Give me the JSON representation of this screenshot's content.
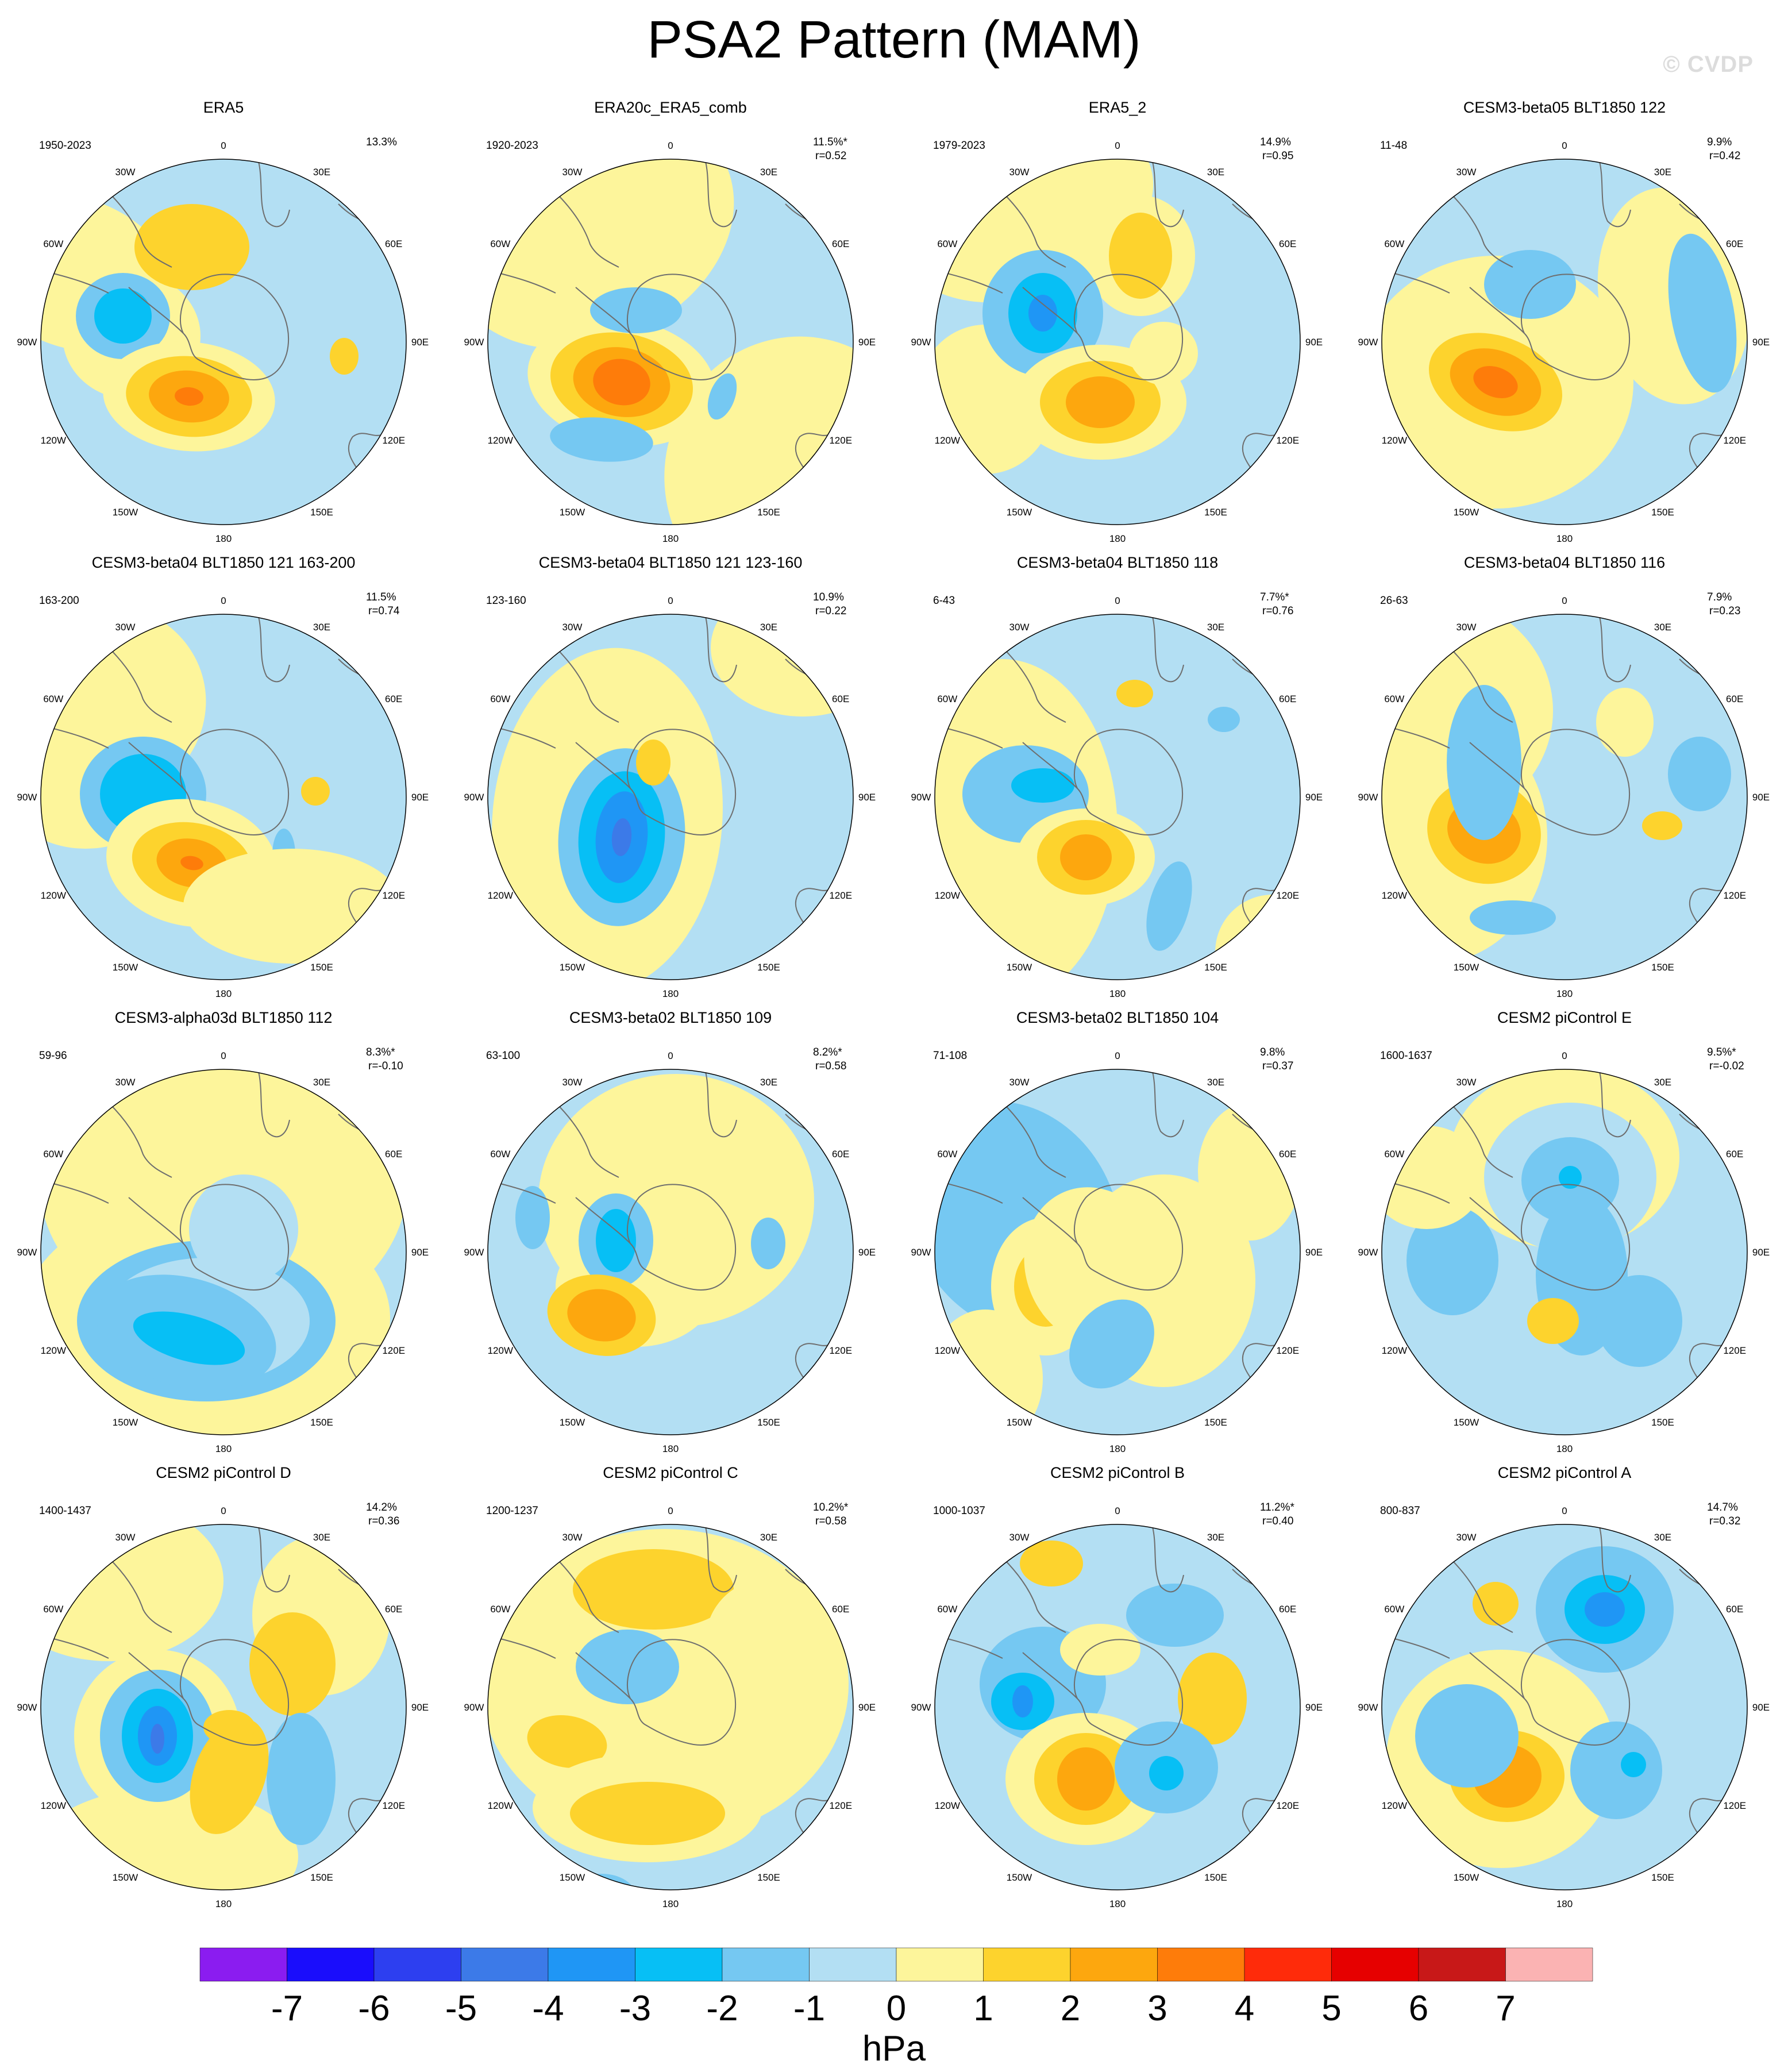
{
  "title": "PSA2 Pattern (MAM)",
  "watermark": "© CVDP",
  "units": "hPa",
  "colors": {
    "ocean_neg1": "#b3dff3",
    "land_pos1": "#fdf59b",
    "levels": [
      "#8b1cf0",
      "#1a0dfc",
      "#2d3ff0",
      "#3c7ae8",
      "#1f96f5",
      "#07bff5",
      "#75c8f2",
      "#b3dff3",
      "#fdf59b",
      "#fdd32d",
      "#fda70e",
      "#fe7c0a",
      "#ff2b0a",
      "#e60000",
      "#c81818",
      "#fbb3b3"
    ]
  },
  "colorbar": {
    "labels": [
      "-7",
      "-6",
      "-5",
      "-4",
      "-3",
      "-2",
      "-1",
      "0",
      "1",
      "2",
      "3",
      "4",
      "5",
      "6",
      "7"
    ]
  },
  "longitude_labels": [
    "0",
    "30E",
    "60E",
    "90E",
    "120E",
    "150E",
    "180",
    "150W",
    "120W",
    "90W",
    "60W",
    "30W"
  ],
  "panels": [
    {
      "title": "ERA5",
      "years": "1950-2023",
      "pct": "13.3%",
      "r": ""
    },
    {
      "title": "ERA20c_ERA5_comb",
      "years": "1920-2023",
      "pct": "11.5%*",
      "r": "r=0.52"
    },
    {
      "title": "ERA5_2",
      "years": "1979-2023",
      "pct": "14.9%",
      "r": "r=0.95"
    },
    {
      "title": "CESM3-beta05 BLT1850 122",
      "years": "11-48",
      "pct": "9.9%",
      "r": "r=0.42"
    },
    {
      "title": "CESM3-beta04 BLT1850 121 163-200",
      "years": "163-200",
      "pct": "11.5%",
      "r": "r=0.74"
    },
    {
      "title": "CESM3-beta04 BLT1850 121 123-160",
      "years": "123-160",
      "pct": "10.9%",
      "r": "r=0.22"
    },
    {
      "title": "CESM3-beta04 BLT1850 118",
      "years": "6-43",
      "pct": "7.7%*",
      "r": "r=0.76"
    },
    {
      "title": "CESM3-beta04 BLT1850 116",
      "years": "26-63",
      "pct": "7.9%",
      "r": "r=0.23"
    },
    {
      "title": "CESM3-alpha03d BLT1850 112",
      "years": "59-96",
      "pct": "8.3%*",
      "r": "r=-0.10"
    },
    {
      "title": "CESM3-beta02 BLT1850 109",
      "years": "63-100",
      "pct": "8.2%*",
      "r": "r=0.58"
    },
    {
      "title": "CESM3-beta02 BLT1850 104",
      "years": "71-108",
      "pct": "9.8%",
      "r": "r=0.37"
    },
    {
      "title": "CESM2 piControl E",
      "years": "1600-1637",
      "pct": "9.5%*",
      "r": "r=-0.02"
    },
    {
      "title": "CESM2 piControl D",
      "years": "1400-1437",
      "pct": "14.2%",
      "r": "r=0.36"
    },
    {
      "title": "CESM2 piControl C",
      "years": "1200-1237",
      "pct": "10.2%*",
      "r": "r=0.58"
    },
    {
      "title": "CESM2 piControl B",
      "years": "1000-1037",
      "pct": "11.2%*",
      "r": "r=0.40"
    },
    {
      "title": "CESM2 piControl A",
      "years": "800-837",
      "pct": "14.7%",
      "r": "r=0.32"
    }
  ]
}
